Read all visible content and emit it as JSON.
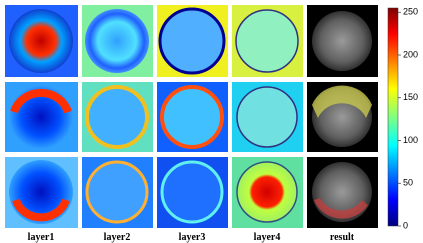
{
  "columns": [
    "layer1",
    "layer2",
    "layer3",
    "layer4",
    "result"
  ],
  "colorbar": {
    "lim": [
      0,
      255
    ],
    "ticks": [
      0,
      50,
      100,
      150,
      200,
      250
    ]
  }
}
